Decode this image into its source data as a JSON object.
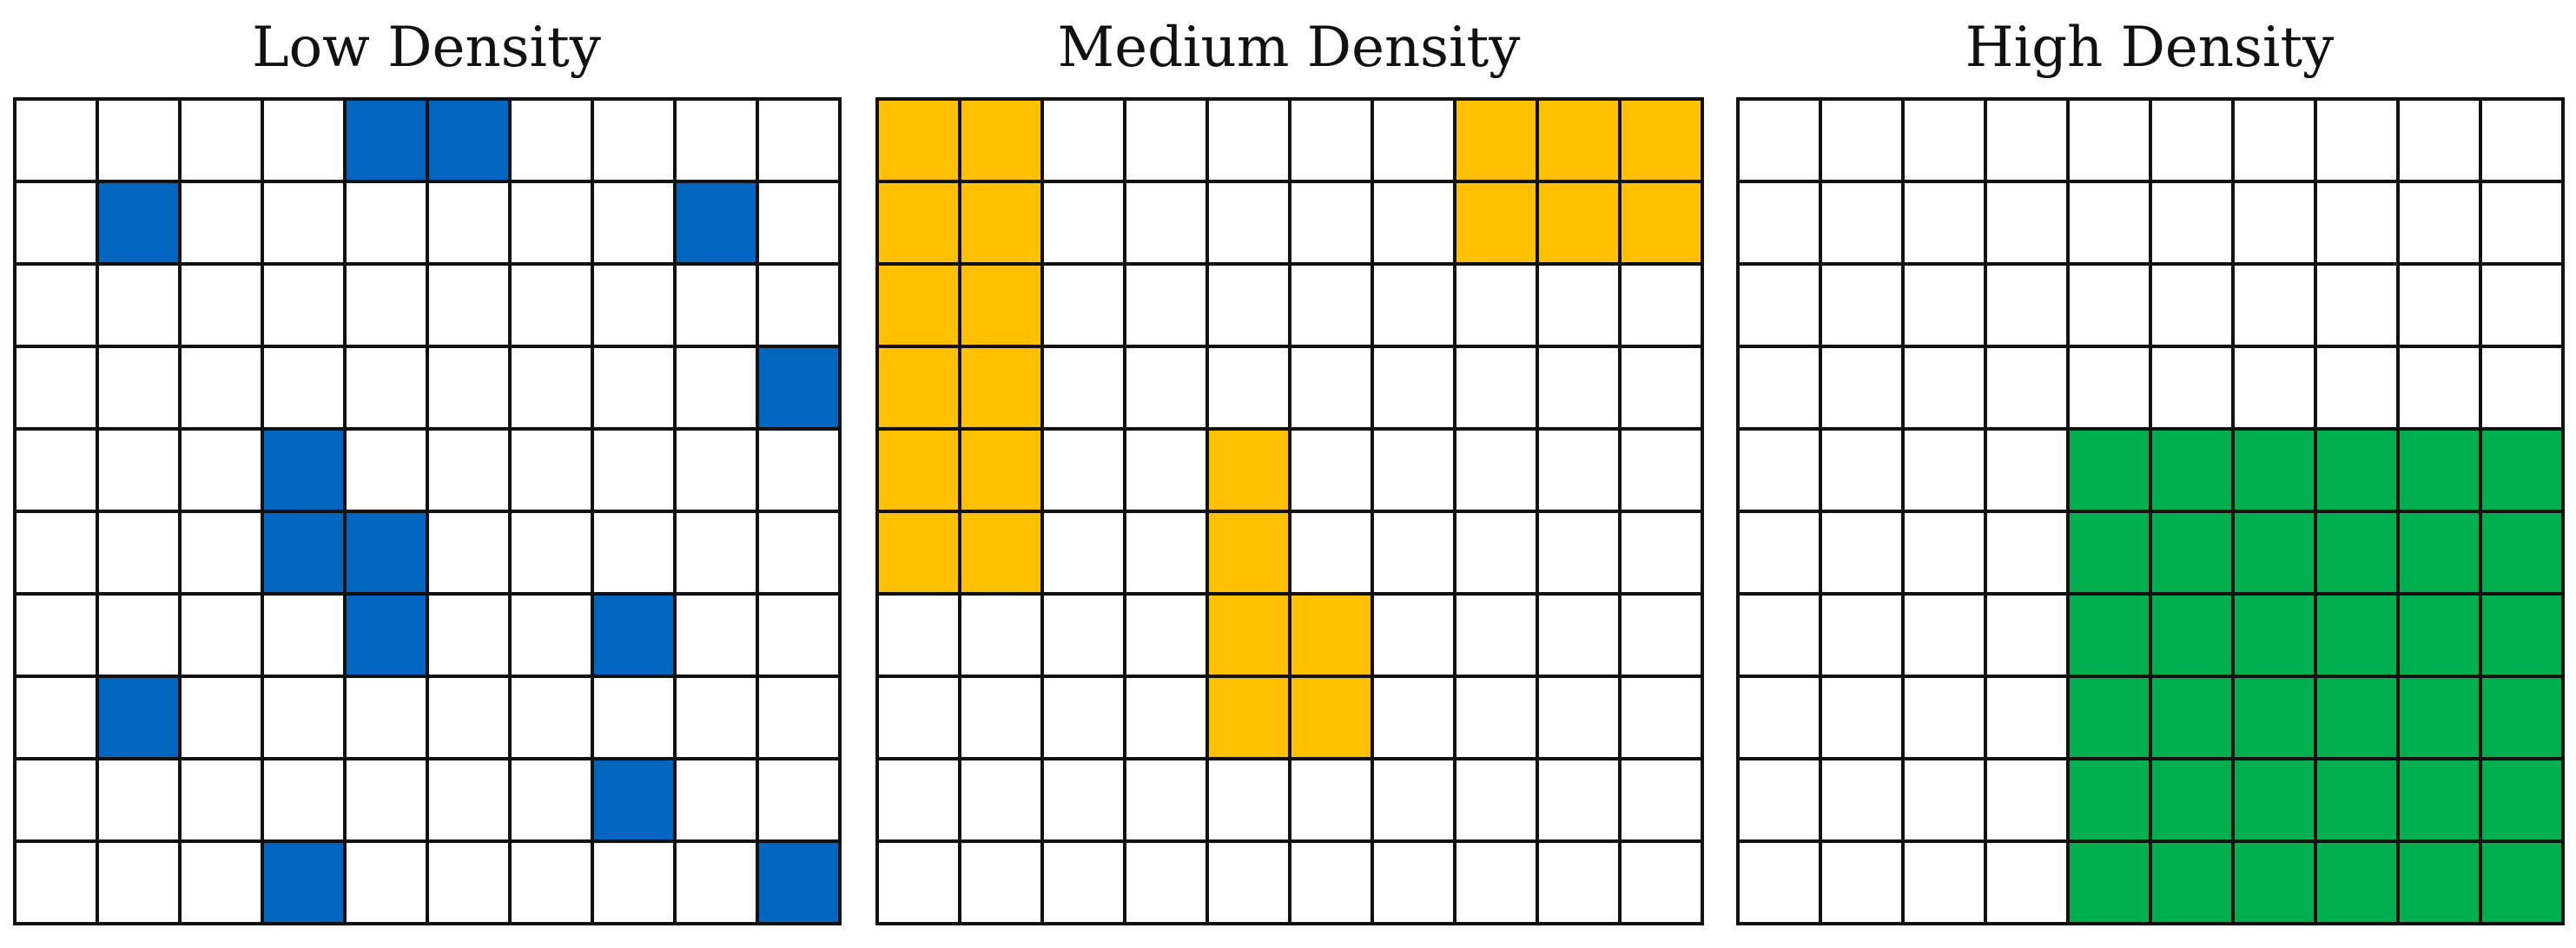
{
  "grid_size": {
    "rows": 10,
    "cols": 10
  },
  "panels": [
    {
      "id": "low",
      "title": "Low Density",
      "fill_color": "#0066c0",
      "filled_cells": [
        [
          0,
          4
        ],
        [
          0,
          5
        ],
        [
          1,
          1
        ],
        [
          1,
          8
        ],
        [
          3,
          9
        ],
        [
          4,
          3
        ],
        [
          5,
          3
        ],
        [
          5,
          4
        ],
        [
          6,
          4
        ],
        [
          6,
          7
        ],
        [
          7,
          1
        ],
        [
          8,
          7
        ],
        [
          9,
          3
        ],
        [
          9,
          9
        ]
      ]
    },
    {
      "id": "medium",
      "title": "Medium Density",
      "fill_color": "#ffc000",
      "filled_cells": [
        [
          0,
          0
        ],
        [
          0,
          1
        ],
        [
          0,
          7
        ],
        [
          0,
          8
        ],
        [
          0,
          9
        ],
        [
          1,
          0
        ],
        [
          1,
          1
        ],
        [
          1,
          7
        ],
        [
          1,
          8
        ],
        [
          1,
          9
        ],
        [
          2,
          0
        ],
        [
          2,
          1
        ],
        [
          3,
          0
        ],
        [
          3,
          1
        ],
        [
          4,
          0
        ],
        [
          4,
          1
        ],
        [
          4,
          4
        ],
        [
          5,
          0
        ],
        [
          5,
          1
        ],
        [
          5,
          4
        ],
        [
          6,
          4
        ],
        [
          6,
          5
        ],
        [
          7,
          4
        ],
        [
          7,
          5
        ]
      ]
    },
    {
      "id": "high",
      "title": "High Density",
      "fill_color": "#00b050",
      "filled_cells": [
        [
          4,
          4
        ],
        [
          4,
          5
        ],
        [
          4,
          6
        ],
        [
          4,
          7
        ],
        [
          4,
          8
        ],
        [
          4,
          9
        ],
        [
          5,
          4
        ],
        [
          5,
          5
        ],
        [
          5,
          6
        ],
        [
          5,
          7
        ],
        [
          5,
          8
        ],
        [
          5,
          9
        ],
        [
          6,
          4
        ],
        [
          6,
          5
        ],
        [
          6,
          6
        ],
        [
          6,
          7
        ],
        [
          6,
          8
        ],
        [
          6,
          9
        ],
        [
          7,
          4
        ],
        [
          7,
          5
        ],
        [
          7,
          6
        ],
        [
          7,
          7
        ],
        [
          7,
          8
        ],
        [
          7,
          9
        ],
        [
          8,
          4
        ],
        [
          8,
          5
        ],
        [
          8,
          6
        ],
        [
          8,
          7
        ],
        [
          8,
          8
        ],
        [
          8,
          9
        ],
        [
          9,
          4
        ],
        [
          9,
          5
        ],
        [
          9,
          6
        ],
        [
          9,
          7
        ],
        [
          9,
          8
        ],
        [
          9,
          9
        ]
      ]
    }
  ]
}
